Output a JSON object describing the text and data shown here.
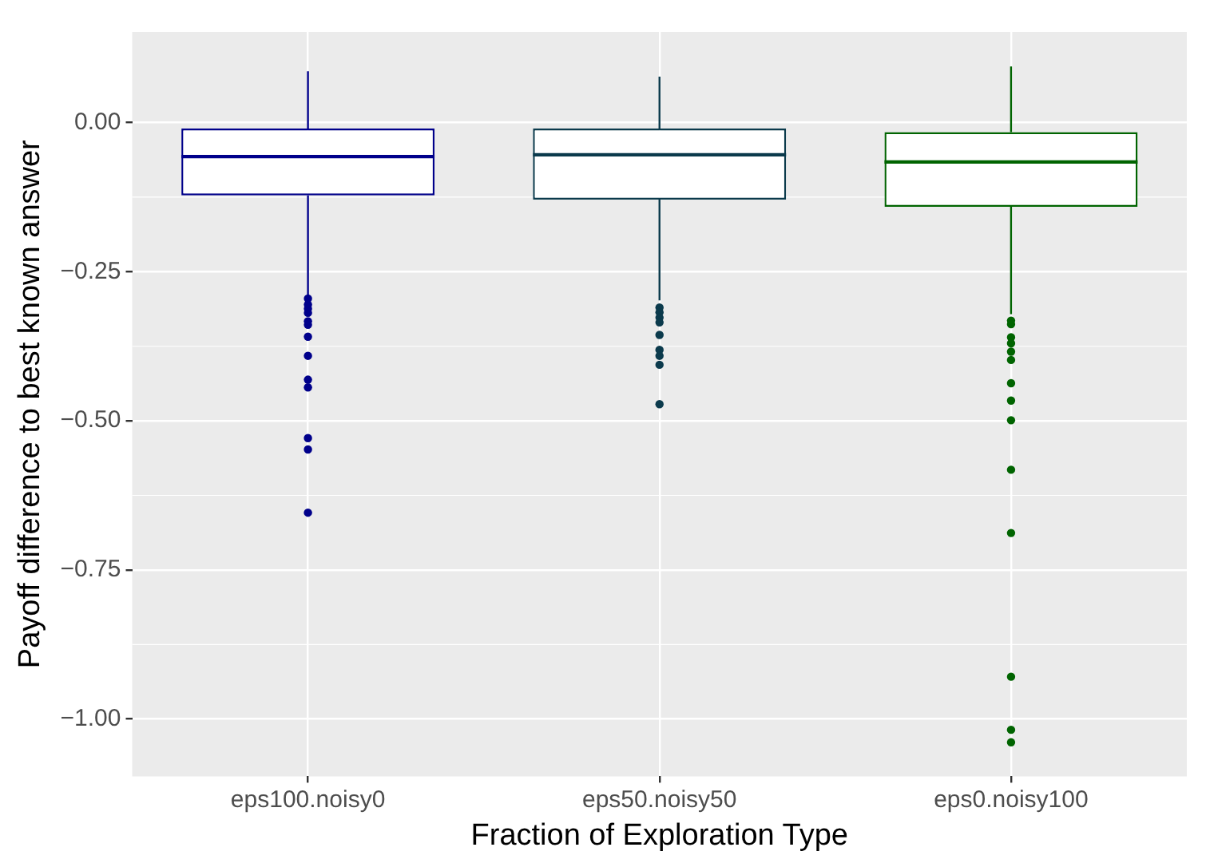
{
  "chart_data": {
    "type": "box",
    "xlabel": "Fraction of Exploration Type",
    "ylabel": "Payoff difference to best known answer",
    "categories": [
      "eps100.noisy0",
      "eps50.noisy50",
      "eps0.noisy100"
    ],
    "colors": [
      "#00008b",
      "#0b3a4c",
      "#006400"
    ],
    "boxes": [
      {
        "low": -0.29,
        "q1": -0.122,
        "median": -0.057,
        "q3": -0.01,
        "high": 0.086,
        "outliers": [
          -0.295,
          -0.305,
          -0.312,
          -0.319,
          -0.333,
          -0.339,
          -0.359,
          -0.391,
          -0.431,
          -0.444,
          -0.529,
          -0.548,
          -0.654
        ]
      },
      {
        "low": -0.298,
        "q1": -0.129,
        "median": -0.054,
        "q3": -0.01,
        "high": 0.077,
        "outliers": [
          -0.31,
          -0.318,
          -0.327,
          -0.335,
          -0.356,
          -0.381,
          -0.391,
          -0.406,
          -0.472
        ]
      },
      {
        "low": -0.321,
        "q1": -0.141,
        "median": -0.066,
        "q3": -0.016,
        "high": 0.094,
        "outliers": [
          -0.332,
          -0.338,
          -0.36,
          -0.37,
          -0.384,
          -0.398,
          -0.437,
          -0.466,
          -0.499,
          -0.582,
          -0.688,
          -0.929,
          -1.018,
          -1.039
        ]
      }
    ],
    "ylim": [
      -1.096,
      0.152
    ],
    "yticks": [
      {
        "value": 0,
        "label": "0.00"
      },
      {
        "value": -0.25,
        "label": "−0.25"
      },
      {
        "value": -0.5,
        "label": "−0.50"
      },
      {
        "value": -0.75,
        "label": "−0.75"
      },
      {
        "value": -1,
        "label": "−1.00"
      }
    ],
    "grid": true,
    "legend": false
  }
}
